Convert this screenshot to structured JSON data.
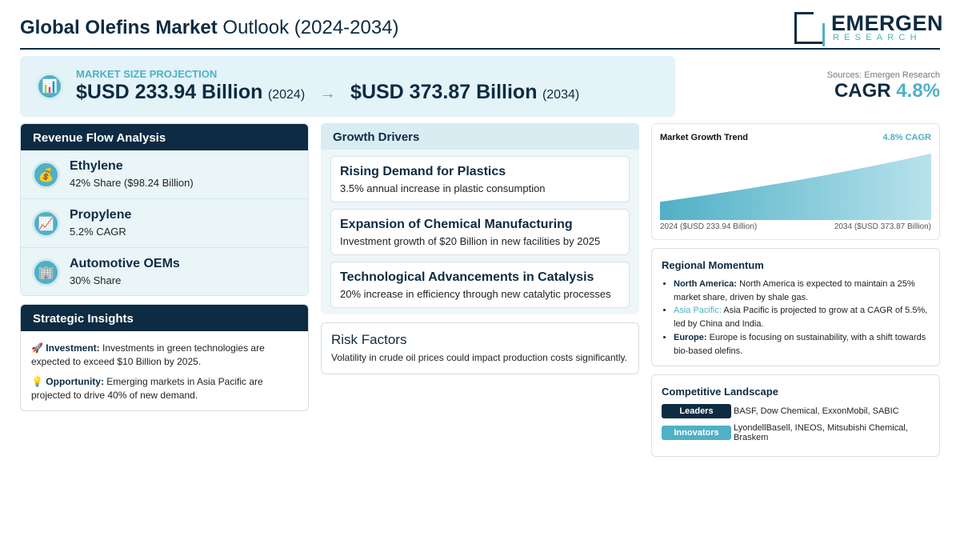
{
  "header": {
    "title_bold": "Global Olefins Market",
    "title_rest": " Outlook (2024-2034)",
    "logo_word": "EMERGEN",
    "logo_sub": "RESEARCH"
  },
  "market_size": {
    "icon": "bar-chart-icon",
    "label": "MARKET SIZE PROJECTION",
    "start_value": "$USD 233.94 Billion",
    "start_year": "(2024)",
    "arrow": "→",
    "end_value": "$USD 373.87 Billion",
    "end_year": "(2034)"
  },
  "sources": "Sources: Emergen Research",
  "cagr": {
    "label": "CAGR ",
    "value": "4.8%"
  },
  "revenue_flow": {
    "title": "Revenue Flow Analysis",
    "items": [
      {
        "icon": "money-bag-icon",
        "glyph": "💰",
        "name": "Ethylene",
        "desc": "42% Share ($98.24 Billion)"
      },
      {
        "icon": "trend-chart-icon",
        "glyph": "📈",
        "name": "Propylene",
        "desc": "5.2% CAGR"
      },
      {
        "icon": "building-icon",
        "glyph": "🏢",
        "name": "Automotive OEMs",
        "desc": "30% Share"
      }
    ]
  },
  "insights": {
    "title": "Strategic Insights",
    "items": [
      {
        "glyph": "🚀",
        "label": "Investment:",
        "text": " Investments in green technologies are expected to exceed $10 Billion by 2025."
      },
      {
        "glyph": "💡",
        "label": "Opportunity:",
        "text": " Emerging markets in Asia Pacific are projected to drive 40% of new demand."
      }
    ]
  },
  "drivers": {
    "title": "Growth Drivers",
    "items": [
      {
        "title": "Rising Demand for Plastics",
        "desc": "3.5% annual increase in plastic consumption"
      },
      {
        "title": "Expansion of Chemical Manufacturing",
        "desc": "Investment growth of $20 Billion in new facilities by 2025"
      },
      {
        "title": "Technological Advancements in Catalysis",
        "desc": "20% increase in efficiency through new catalytic processes"
      }
    ]
  },
  "risk": {
    "title": "Risk Factors",
    "desc": "Volatility in crude oil prices could impact production costs significantly."
  },
  "trend": {
    "title": "Market Growth Trend",
    "cagr": "4.8% CAGR",
    "start_label": "2024 ($USD 233.94 Billion)",
    "end_label": "2034 ($USD 373.87 Billion)",
    "fill_top": "#b8e2ec",
    "fill_bottom": "#4fb0c6"
  },
  "chart_data": {
    "type": "area",
    "x": [
      2024,
      2034
    ],
    "values": [
      233.94,
      373.87
    ],
    "title": "Market Growth Trend"
  },
  "regional": {
    "title": "Regional Momentum",
    "items": [
      {
        "label": "North America:",
        "text": " North America is expected to maintain a 25% market share, driven by shale gas."
      },
      {
        "label": "Asia Pacific:",
        "text": " Asia Pacific is projected to grow at a CAGR of 5.5%, led by China and India."
      },
      {
        "label": "Europe:",
        "text": " Europe is focusing on sustainability, with a shift towards bio-based olefins."
      }
    ]
  },
  "competitive": {
    "title": "Competitive Landscape",
    "leaders_label": "Leaders",
    "leaders": "BASF, Dow Chemical, ExxonMobil, SABIC",
    "innovators_label": "Innovators",
    "innovators": "LyondellBasell, INEOS, Mitsubishi Chemical, Braskem"
  },
  "colors": {
    "navy": "#0d2b42",
    "accent": "#4fb0c6",
    "light_bg": "#e4f3f7"
  }
}
